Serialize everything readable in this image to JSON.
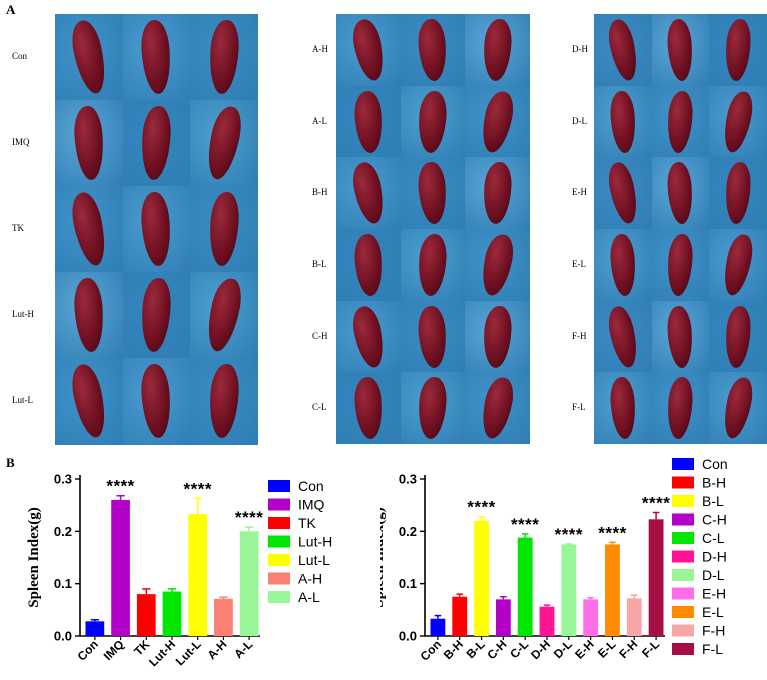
{
  "panel_a_label": "A",
  "panel_b_label": "B",
  "photo_groups": [
    {
      "rows": [
        "Con",
        "IMQ",
        "TK",
        "Lut-H",
        "Lut-L"
      ]
    },
    {
      "rows": [
        "A-H",
        "A-L",
        "B-H",
        "B-L",
        "C-H",
        "C-L"
      ]
    },
    {
      "rows": [
        "D-H",
        "D-L",
        "E-H",
        "E-L",
        "F-H",
        "F-L"
      ]
    }
  ],
  "colors": {
    "photo_background": "#3f93c8",
    "spleen": "#6e1021"
  },
  "chart_data": [
    {
      "type": "bar",
      "ylabel": "Spleen Index(g)",
      "ylim": [
        0,
        0.3
      ],
      "yticks": [
        "0.0",
        "0.1",
        "0.2",
        "0.3"
      ],
      "yticks_values": [
        0,
        0.1,
        0.2,
        0.3
      ],
      "categories": [
        "Con",
        "IMQ",
        "TK",
        "Lut-H",
        "Lut-L",
        "A-H",
        "A-L"
      ],
      "values": [
        0.028,
        0.26,
        0.08,
        0.085,
        0.233,
        0.071,
        0.2
      ],
      "errors": [
        0.003,
        0.008,
        0.01,
        0.005,
        0.03,
        0.003,
        0.008
      ],
      "significance": [
        "",
        "****",
        "",
        "",
        "****",
        "",
        "****"
      ],
      "colors": [
        "#0000ff",
        "#b300c8",
        "#ff0000",
        "#00e600",
        "#ffff00",
        "#fa8072",
        "#98f598"
      ],
      "legend": [
        "Con",
        "IMQ",
        "TK",
        "Lut-H",
        "Lut-L",
        "A-H",
        "A-L"
      ],
      "legend_placement": "right",
      "grid": false
    },
    {
      "type": "bar",
      "ylabel": "Spleen Index(g)",
      "ylim": [
        0,
        0.3
      ],
      "yticks": [
        "0.0",
        "0.1",
        "0.2",
        "0.3"
      ],
      "yticks_values": [
        0,
        0.1,
        0.2,
        0.3
      ],
      "categories": [
        "Con",
        "B-H",
        "B-L",
        "C-H",
        "C-L",
        "D-H",
        "D-L",
        "E-H",
        "E-L",
        "F-H",
        "F-L"
      ],
      "values": [
        0.033,
        0.075,
        0.22,
        0.07,
        0.188,
        0.056,
        0.175,
        0.07,
        0.175,
        0.072,
        0.223
      ],
      "errors": [
        0.006,
        0.005,
        0.008,
        0.005,
        0.007,
        0.003,
        0.001,
        0.003,
        0.004,
        0.006,
        0.013
      ],
      "significance": [
        "",
        "",
        "****",
        "",
        "****",
        "",
        "****",
        "",
        "****",
        "",
        "****"
      ],
      "colors": [
        "#0000ff",
        "#ff0000",
        "#ffff00",
        "#b300c8",
        "#00e600",
        "#ff1493",
        "#98f598",
        "#ff6ee6",
        "#ff8c00",
        "#f7a5a5",
        "#a50f46"
      ],
      "legend": [
        "Con",
        "B-H",
        "B-L",
        "C-H",
        "C-L",
        "D-H",
        "D-L",
        "E-H",
        "E-L",
        "F-H",
        "F-L"
      ],
      "legend_placement": "right",
      "grid": false
    }
  ]
}
